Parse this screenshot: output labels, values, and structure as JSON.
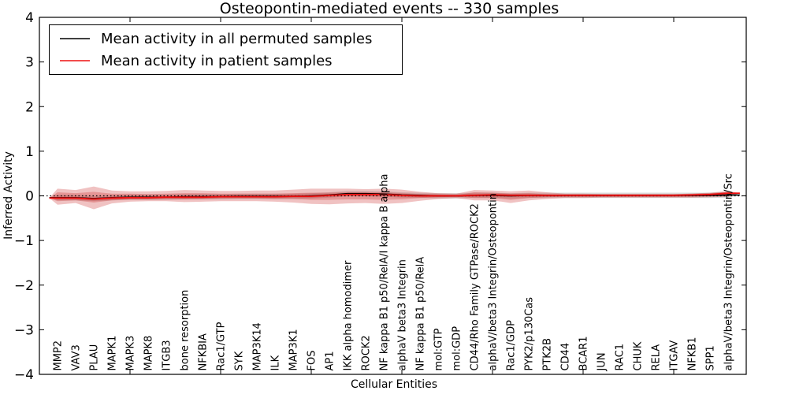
{
  "chart_data": {
    "type": "line",
    "title": "Osteopontin-mediated events -- 330 samples",
    "xlabel": "Cellular Entities",
    "ylabel": "Inferred Activity",
    "ylim": [
      -4,
      4
    ],
    "grid": false,
    "legend_position": "upper left",
    "y_ticks": [
      "4",
      "3",
      "2",
      "1",
      "0",
      "−1",
      "−2",
      "−3",
      "−4"
    ],
    "x_tick_positions": [
      5,
      10,
      15,
      20,
      25,
      30,
      35
    ],
    "categories": [
      "MMP2",
      "VAV3",
      "PLAU",
      "MAPK1",
      "MAPK3",
      "MAPK8",
      "ITGB3",
      "bone resorption",
      "NFKBIA",
      "Rac1/GTP",
      "SYK",
      "MAP3K14",
      "ILK",
      "MAP3K1",
      "FOS",
      "AP1",
      "IKK alpha homodimer",
      "ROCK2",
      "NF kappa B1 p50/RelA/I kappa B alpha",
      "alphaV beta3 Integrin",
      "NF kappa B1 p50/RelA",
      "mol:GTP",
      "mol:GDP",
      "CD44/Rho Family GTPase/ROCK2",
      "alphaV/beta3 Integrin/Osteopontin",
      "Rac1/GDP",
      "PYK2/p130Cas",
      "PTK2B",
      "CD44",
      "BCAR1",
      "JUN",
      "RAC1",
      "CHUK",
      "RELA",
      "ITGAV",
      "NFKB1",
      "SPP1",
      "alphaV/beta3 Integrin/Osteopontin/Src"
    ],
    "series": [
      {
        "name": "Mean activity in all permuted samples",
        "color": "#000000",
        "style": "solid",
        "values": [
          -0.04,
          -0.04,
          -0.06,
          -0.04,
          -0.03,
          -0.03,
          -0.03,
          -0.02,
          -0.02,
          -0.02,
          -0.01,
          -0.01,
          -0.01,
          -0.01,
          0.0,
          0.02,
          0.05,
          0.05,
          0.04,
          0.02,
          0.01,
          0.0,
          0.0,
          0.01,
          0.01,
          0.0,
          0.01,
          0.01,
          0.01,
          0.01,
          0.01,
          0.01,
          0.01,
          0.01,
          0.01,
          0.01,
          0.01,
          0.02
        ]
      },
      {
        "name": "Mean activity in patient samples",
        "color": "#ee1111",
        "style": "solid",
        "values": [
          -0.05,
          -0.05,
          -0.07,
          -0.05,
          -0.04,
          -0.04,
          -0.03,
          -0.03,
          -0.03,
          -0.02,
          -0.02,
          -0.02,
          -0.02,
          -0.01,
          -0.01,
          0.01,
          0.03,
          0.03,
          0.03,
          0.01,
          0.0,
          0.0,
          0.0,
          0.01,
          0.02,
          0.01,
          0.01,
          0.01,
          0.01,
          0.01,
          0.01,
          0.01,
          0.01,
          0.01,
          0.01,
          0.02,
          0.03,
          0.06
        ]
      }
    ],
    "bands": [
      {
        "name": "patient-outer",
        "fill": "rgba(200,30,30,0.27)",
        "upper": [
          0.16,
          0.13,
          0.21,
          0.12,
          0.1,
          0.1,
          0.11,
          0.13,
          0.12,
          0.11,
          0.11,
          0.12,
          0.12,
          0.14,
          0.16,
          0.16,
          0.16,
          0.15,
          0.16,
          0.14,
          0.09,
          0.06,
          0.05,
          0.13,
          0.12,
          0.1,
          0.12,
          0.08,
          0.05,
          0.05,
          0.04,
          0.04,
          0.04,
          0.04,
          0.04,
          0.05,
          0.07,
          0.11
        ],
        "lower": [
          -0.2,
          -0.16,
          -0.3,
          -0.17,
          -0.13,
          -0.12,
          -0.12,
          -0.14,
          -0.13,
          -0.12,
          -0.12,
          -0.12,
          -0.13,
          -0.15,
          -0.18,
          -0.19,
          -0.17,
          -0.16,
          -0.18,
          -0.16,
          -0.11,
          -0.07,
          -0.05,
          -0.1,
          -0.1,
          -0.16,
          -0.1,
          -0.07,
          -0.05,
          -0.05,
          -0.04,
          -0.04,
          -0.04,
          -0.04,
          -0.04,
          -0.04,
          -0.03,
          -0.02
        ]
      },
      {
        "name": "patient-mid",
        "fill": "rgba(200,30,30,0.27)",
        "upper": [
          0.08,
          0.06,
          0.09,
          0.05,
          0.05,
          0.04,
          0.05,
          0.06,
          0.06,
          0.05,
          0.05,
          0.05,
          0.05,
          0.06,
          0.07,
          0.07,
          0.08,
          0.08,
          0.08,
          0.06,
          0.04,
          0.03,
          0.02,
          0.08,
          0.07,
          0.05,
          0.06,
          0.03,
          0.02,
          0.02,
          0.02,
          0.02,
          0.02,
          0.02,
          0.02,
          0.02,
          0.04,
          0.08
        ],
        "lower": [
          -0.12,
          -0.1,
          -0.15,
          -0.1,
          -0.08,
          -0.08,
          -0.07,
          -0.08,
          -0.07,
          -0.06,
          -0.06,
          -0.06,
          -0.07,
          -0.07,
          -0.09,
          -0.09,
          -0.08,
          -0.08,
          -0.09,
          -0.08,
          -0.05,
          -0.03,
          -0.02,
          -0.05,
          -0.05,
          -0.09,
          -0.05,
          -0.03,
          -0.02,
          -0.02,
          -0.02,
          -0.02,
          -0.02,
          -0.02,
          -0.02,
          -0.02,
          -0.01,
          -0.01
        ]
      },
      {
        "name": "patient-core",
        "fill": "rgba(200,30,30,0.30)",
        "center_series": 1,
        "half_width": 0.03
      },
      {
        "name": "permuted-band",
        "fill": "rgba(128,128,128,0.30)",
        "center_series": 0,
        "half_width": 0.06
      }
    ],
    "baseline": {
      "y": 0,
      "style": "dotted",
      "color": "#000000"
    }
  }
}
